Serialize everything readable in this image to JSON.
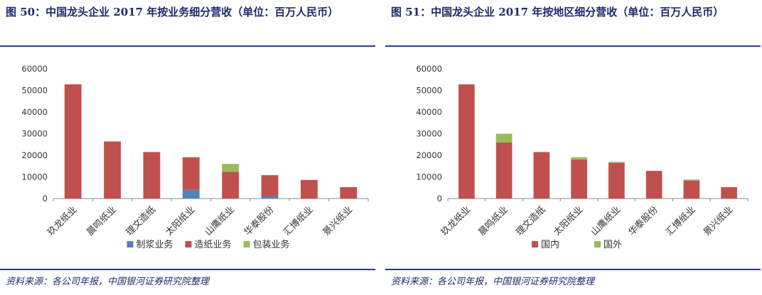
{
  "figures": [
    {
      "title": "图 50：中国龙头企业 2017 年按业务细分营收（单位：百万人民币）",
      "source": "资料来源：各公司年报，中国银河证券研究院整理",
      "chart_data": {
        "type": "bar",
        "stacked": true,
        "categories": [
          "玖龙纸业",
          "晨鸣纸业",
          "理文造纸",
          "太阳纸业",
          "山鹰纸业",
          "华泰股份",
          "汇博纸业",
          "景兴纸业"
        ],
        "series": [
          {
            "name": "制浆业务",
            "color": "#4f81bd",
            "values": [
              0,
              0,
              0,
              4000,
              0,
              1000,
              0,
              0
            ]
          },
          {
            "name": "造纸业务",
            "color": "#c0504d",
            "values": [
              52800,
              26400,
              21500,
              15100,
              12400,
              9800,
              8600,
              5300
            ]
          },
          {
            "name": "包装业务",
            "color": "#9bbb59",
            "values": [
              0,
              0,
              0,
              0,
              3600,
              0,
              0,
              0
            ]
          }
        ],
        "ylim": [
          0,
          60000
        ],
        "yticks": [
          0,
          10000,
          20000,
          30000,
          40000,
          50000,
          60000
        ],
        "grid": false,
        "legend": "bottom"
      }
    },
    {
      "title": "图 51：中国龙头企业 2017 年按地区细分营收（单位：百万人民币）",
      "source": "资料来源：各公司年报，中国银河证券研究院整理",
      "chart_data": {
        "type": "bar",
        "stacked": true,
        "categories": [
          "玖龙纸业",
          "晨鸣纸业",
          "理文造纸",
          "太阳纸业",
          "山鹰纸业",
          "华泰股份",
          "汇博纸业",
          "景兴纸业"
        ],
        "series": [
          {
            "name": "国内",
            "color": "#c0504d",
            "values": [
              52800,
              25900,
              21500,
              18000,
              16500,
              12800,
              8300,
              5300
            ]
          },
          {
            "name": "国外",
            "color": "#9bbb59",
            "values": [
              0,
              4100,
              0,
              1100,
              500,
              0,
              500,
              0
            ]
          }
        ],
        "ylim": [
          0,
          60000
        ],
        "yticks": [
          0,
          10000,
          20000,
          30000,
          40000,
          50000,
          60000
        ],
        "grid": false,
        "legend": "bottom"
      }
    }
  ]
}
